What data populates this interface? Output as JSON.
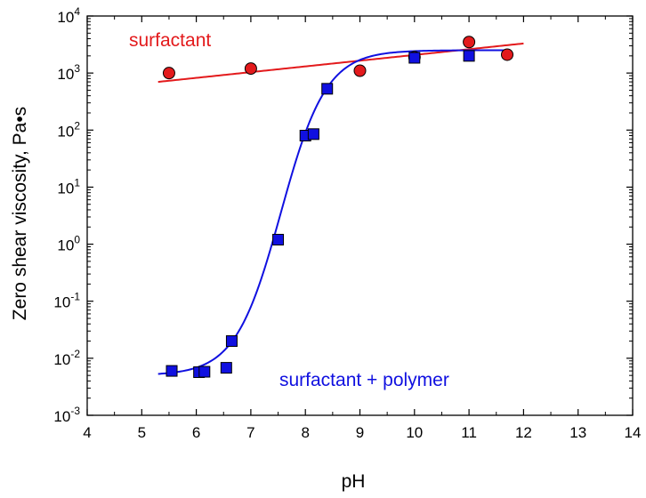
{
  "chart_data": {
    "type": "scatter",
    "xlabel": "pH",
    "ylabel": "Zero shear viscosity, Pa•s",
    "xlim": [
      4,
      14
    ],
    "ylim_exponent": [
      -3,
      4
    ],
    "yscale": "log",
    "x_ticks": [
      "4",
      "5",
      "6",
      "7",
      "8",
      "9",
      "10",
      "11",
      "12",
      "13",
      "14"
    ],
    "y_tick_exponents": [
      "-3",
      "-2",
      "-1",
      "0",
      "1",
      "2",
      "3",
      "4"
    ],
    "y_tick_base": "10",
    "grid": false,
    "series": [
      {
        "name": "surfactant",
        "color": "#e31a1c",
        "marker": "circle",
        "points": [
          {
            "x": 5.5,
            "y": 1000
          },
          {
            "x": 7.0,
            "y": 1200
          },
          {
            "x": 9.0,
            "y": 1100
          },
          {
            "x": 10.0,
            "y": 1900
          },
          {
            "x": 11.0,
            "y": 3500
          },
          {
            "x": 11.7,
            "y": 2100
          }
        ],
        "fit": {
          "type": "loglinear",
          "x_range": [
            5.3,
            12.0
          ],
          "y_start": 700,
          "y_end": 3300
        }
      },
      {
        "name": "surfactant + polymer",
        "color": "#1010e0",
        "marker": "square",
        "points": [
          {
            "x": 5.55,
            "y": 0.006
          },
          {
            "x": 6.05,
            "y": 0.0057
          },
          {
            "x": 6.15,
            "y": 0.0058
          },
          {
            "x": 6.55,
            "y": 0.0068
          },
          {
            "x": 6.65,
            "y": 0.02
          },
          {
            "x": 7.5,
            "y": 1.2
          },
          {
            "x": 8.0,
            "y": 80
          },
          {
            "x": 8.15,
            "y": 85
          },
          {
            "x": 8.4,
            "y": 530
          },
          {
            "x": 10.0,
            "y": 1850
          },
          {
            "x": 11.0,
            "y": 2000
          }
        ],
        "fit": {
          "type": "sigmoid",
          "x_range": [
            5.3,
            11.7
          ],
          "log_low": -2.3,
          "log_high": 3.4,
          "x0": 7.55,
          "k": 2.4
        }
      }
    ]
  }
}
